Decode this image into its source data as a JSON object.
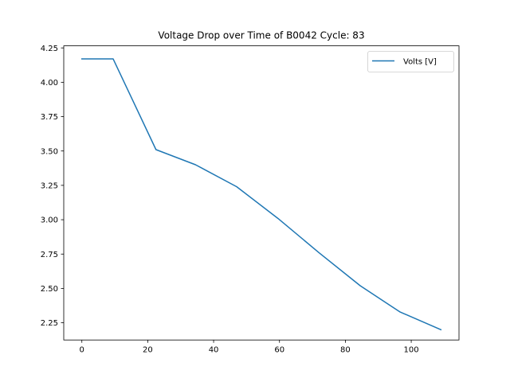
{
  "chart_data": {
    "type": "line",
    "title": "Voltage Drop over Time of B0042 Cycle: 83",
    "xlabel": "",
    "ylabel": "",
    "xlim": [
      -5.5,
      114.5
    ],
    "ylim": [
      2.125,
      4.265
    ],
    "xticks": [
      0,
      20,
      40,
      60,
      80,
      100
    ],
    "yticks": [
      2.25,
      2.5,
      2.75,
      3.0,
      3.25,
      3.5,
      3.75,
      4.0,
      4.25
    ],
    "xtick_labels": [
      "0",
      "20",
      "40",
      "60",
      "80",
      "100"
    ],
    "ytick_labels": [
      "2.25",
      "2.50",
      "2.75",
      "3.00",
      "3.25",
      "3.50",
      "3.75",
      "4.00",
      "4.25"
    ],
    "grid": false,
    "legend_position": "top-right",
    "series": [
      {
        "name": "Volts [V]",
        "color": "#1f77b4",
        "x": [
          0,
          9.5,
          22.5,
          34.5,
          47,
          59.5,
          72,
          84.5,
          96.5,
          109
        ],
        "y": [
          4.17,
          4.17,
          3.51,
          3.4,
          3.24,
          3.01,
          2.76,
          2.52,
          2.33,
          2.2
        ]
      }
    ]
  }
}
